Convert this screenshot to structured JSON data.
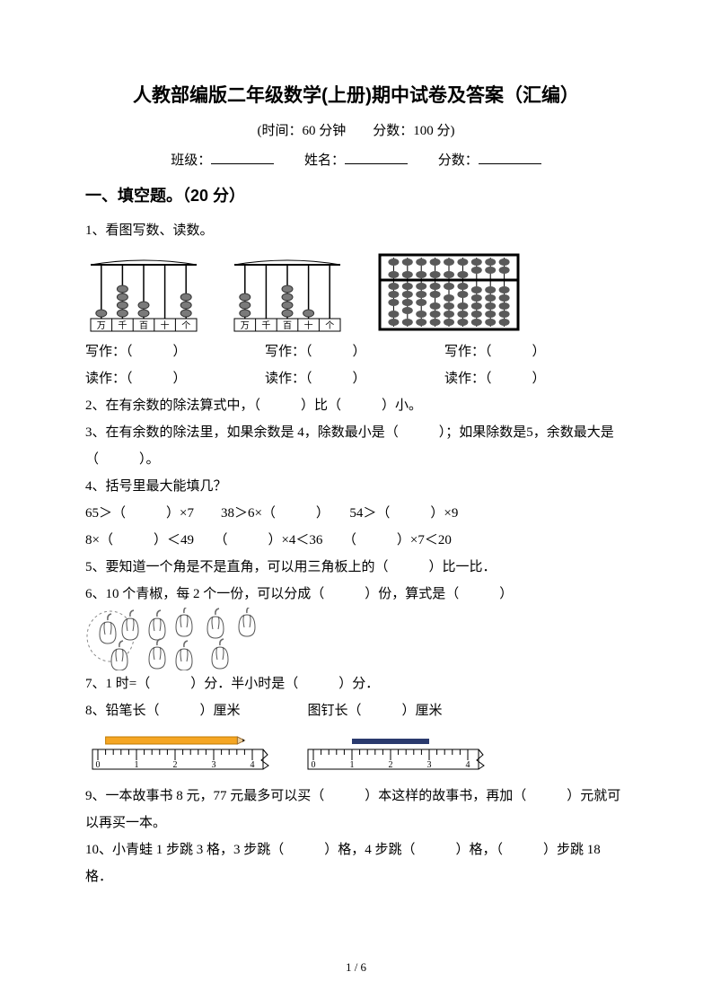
{
  "title": "人教部编版二年级数学(上册)期中试卷及答案（汇编）",
  "subtitle": "(时间：60 分钟　　分数：100 分)",
  "info": {
    "class_label": "班级：",
    "name_label": "姓名：",
    "score_label": "分数："
  },
  "section1": {
    "head": "一、填空题。（20 分）"
  },
  "q1": {
    "stem": "1、看图写数、读数。",
    "write_label": "写作：（　　　）",
    "read_label": "读作：（　　　）",
    "abacus1": {
      "cols": [
        "万",
        "千",
        "百",
        "十",
        "个"
      ],
      "beads": [
        1,
        4,
        2,
        0,
        3
      ],
      "bead_color": "#7a7a7a",
      "frame_color": "#000000"
    },
    "abacus2": {
      "cols": [
        "万",
        "千",
        "百",
        "十",
        "个"
      ],
      "beads": [
        3,
        0,
        4,
        1,
        0
      ],
      "bead_color": "#7a7a7a",
      "frame_color": "#000000"
    },
    "suanpan": {
      "rods": 9,
      "upper_down_cols": [
        1,
        2,
        3,
        4,
        5,
        6
      ],
      "lower_up": [
        3,
        4,
        3,
        2,
        1,
        2,
        0,
        0,
        0
      ],
      "frame_color": "#000000",
      "bead_color": "#5a5a5a"
    }
  },
  "q2": "2、在有余数的除法算式中，（　　　）比（　　　）小。",
  "q3": "3、在有余数的除法里，如果余数是 4，除数最小是（　　　）；如果除数是5，余数最大是（　　　）。",
  "q4": {
    "stem": "4、括号里最大能填几？",
    "l1": "65＞（　　　）×7　　38＞6×（　　　）　　54＞（　　　）×9",
    "l2": "8×（　　　）＜49　　（　　　）×4＜36　　（　　　）×7＜20"
  },
  "q5": "5、要知道一个角是不是直角，可以用三角板上的（　　　）比一比．",
  "q6": {
    "text": "6、10 个青椒，每 2 个一份，可以分成（　　　）份，算式是（　　　）",
    "pepper_count": 10,
    "pepper_color": "#bdbdbd",
    "stem_color": "#6b6b6b"
  },
  "q7": "7、1 时=（　　　）分．半小时是（　　　）分．",
  "q8": {
    "text": "8、铅笔长（　　　）厘米　　　　　图钉长（　　　）厘米",
    "ruler1": {
      "ticks": [
        0,
        1,
        2,
        3,
        4
      ],
      "obj_from": 0.2,
      "obj_to": 3.8,
      "obj_color": "#f5a623",
      "tip_color": "#000000"
    },
    "ruler2": {
      "ticks": [
        0,
        1,
        2,
        3,
        4
      ],
      "obj_from": 1.0,
      "obj_to": 3.0,
      "obj_color": "#2a3a6e"
    }
  },
  "q9": "9、一本故事书 8 元，77 元最多可以买（　　　）本这样的故事书，再加（　　　）元就可以再买一本。",
  "q10": "10、小青蛙 1 步跳 3 格，3 步跳（　　　）格，4 步跳（　　　）格，（　　　）步跳 18 格．",
  "footer": "1 / 6",
  "colors": {
    "text": "#000000",
    "bg": "#ffffff"
  }
}
